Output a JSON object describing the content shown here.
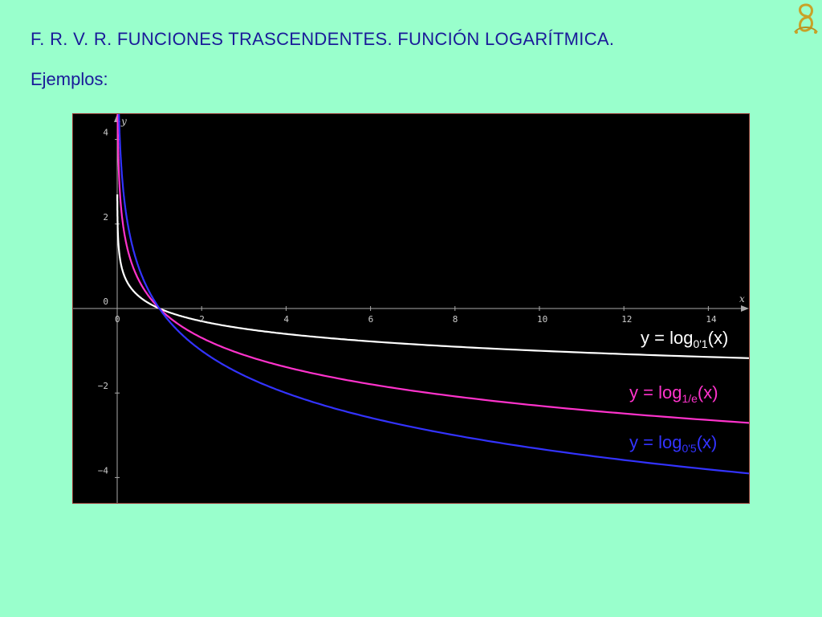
{
  "slide": {
    "title": "F. R. V. R. FUNCIONES TRASCENDENTES. FUNCIÓN LOGARÍTMICA.",
    "subtitle": "Ejemplos:",
    "logo_icon": "ornamental-monogram-icon",
    "background_color": "#99ffcc",
    "text_color": "#1a1a99"
  },
  "chart_data": {
    "type": "line",
    "xlabel": "x",
    "ylabel": "y",
    "xlim": [
      -1,
      15
    ],
    "ylim": [
      -4.6,
      4.6
    ],
    "x_ticks": [
      0,
      2,
      4,
      6,
      8,
      10,
      12,
      14
    ],
    "y_ticks": [
      -4,
      -2,
      0,
      2,
      4
    ],
    "x_tick_labels": [
      "0",
      "2",
      "4",
      "6",
      "8",
      "10",
      "12",
      "14"
    ],
    "y_tick_labels": [
      "−4",
      "−2",
      "0",
      "2",
      "4"
    ],
    "grid": false,
    "background": "#000000",
    "series": [
      {
        "name_main": "y = log",
        "name_sub": "0'1",
        "name_tail": "(x)",
        "base": 0.1,
        "color": "#ffffff",
        "x": [
          0.01,
          0.05,
          0.1,
          0.2,
          0.5,
          1,
          2,
          4,
          6,
          8,
          10,
          12,
          14,
          15
        ],
        "y": [
          2.0,
          1.3,
          1.0,
          0.7,
          0.3,
          0.0,
          -0.3,
          -0.6,
          -0.78,
          -0.9,
          -1.0,
          -1.08,
          -1.15,
          -1.18
        ]
      },
      {
        "name_main": "y = log",
        "name_sub": "1/e",
        "name_tail": "(x)",
        "base": 0.3679,
        "color": "#ff33cc",
        "x": [
          0.01,
          0.05,
          0.1,
          0.2,
          0.5,
          1,
          2,
          4,
          6,
          8,
          10,
          12,
          14,
          15
        ],
        "y": [
          4.6,
          3.0,
          2.3,
          1.61,
          0.69,
          0.0,
          -0.69,
          -1.39,
          -1.79,
          -2.08,
          -2.3,
          -2.48,
          -2.64,
          -2.71
        ]
      },
      {
        "name_main": "y = log",
        "name_sub": "0'5",
        "name_tail": "(x)",
        "base": 0.5,
        "color": "#3333ff",
        "x": [
          0.03,
          0.05,
          0.1,
          0.2,
          0.5,
          1,
          2,
          4,
          6,
          8,
          10,
          12,
          14,
          15
        ],
        "y": [
          5.06,
          4.32,
          3.32,
          2.32,
          1.0,
          0.0,
          -1.0,
          -2.0,
          -2.58,
          -3.0,
          -3.32,
          -3.58,
          -3.81,
          -3.91
        ]
      }
    ]
  }
}
